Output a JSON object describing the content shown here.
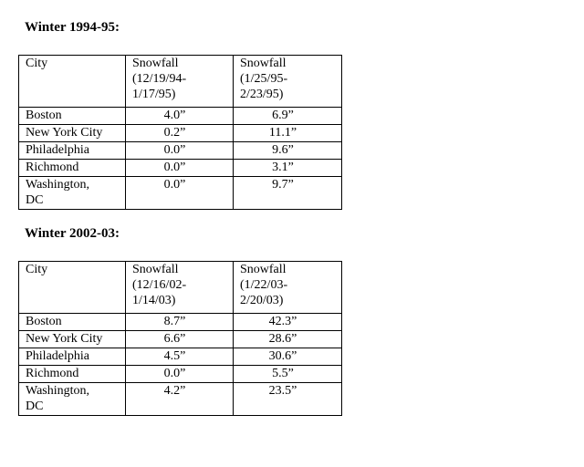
{
  "sections": [
    {
      "title": "Winter 1994-95:",
      "table": {
        "header": [
          "City",
          [
            "Snowfall",
            "(12/19/94-",
            "1/17/95)"
          ],
          [
            "Snowfall",
            "(1/25/95-",
            "2/23/95)"
          ]
        ],
        "rows": [
          [
            "Boston",
            "4.0”",
            "6.9”"
          ],
          [
            "New York City",
            "0.2”",
            "11.1”"
          ],
          [
            "Philadelphia",
            "0.0”",
            "9.6”"
          ],
          [
            "Richmond",
            "0.0”",
            "3.1”"
          ],
          [
            [
              "Washington,",
              "DC"
            ],
            "0.0”",
            "9.7”"
          ]
        ]
      }
    },
    {
      "title": "Winter 2002-03:",
      "table": {
        "header": [
          "City",
          [
            "Snowfall",
            "(12/16/02-",
            "1/14/03)"
          ],
          [
            "Snowfall",
            "(1/22/03-",
            "2/20/03)"
          ]
        ],
        "rows": [
          [
            "Boston",
            "8.7”",
            "42.3”"
          ],
          [
            "New York City",
            "6.6”",
            "28.6”"
          ],
          [
            "Philadelphia",
            "4.5”",
            "30.6”"
          ],
          [
            "Richmond",
            "0.0”",
            "5.5”"
          ],
          [
            [
              "Washington,",
              "DC"
            ],
            "4.2”",
            "23.5”"
          ]
        ]
      }
    }
  ]
}
